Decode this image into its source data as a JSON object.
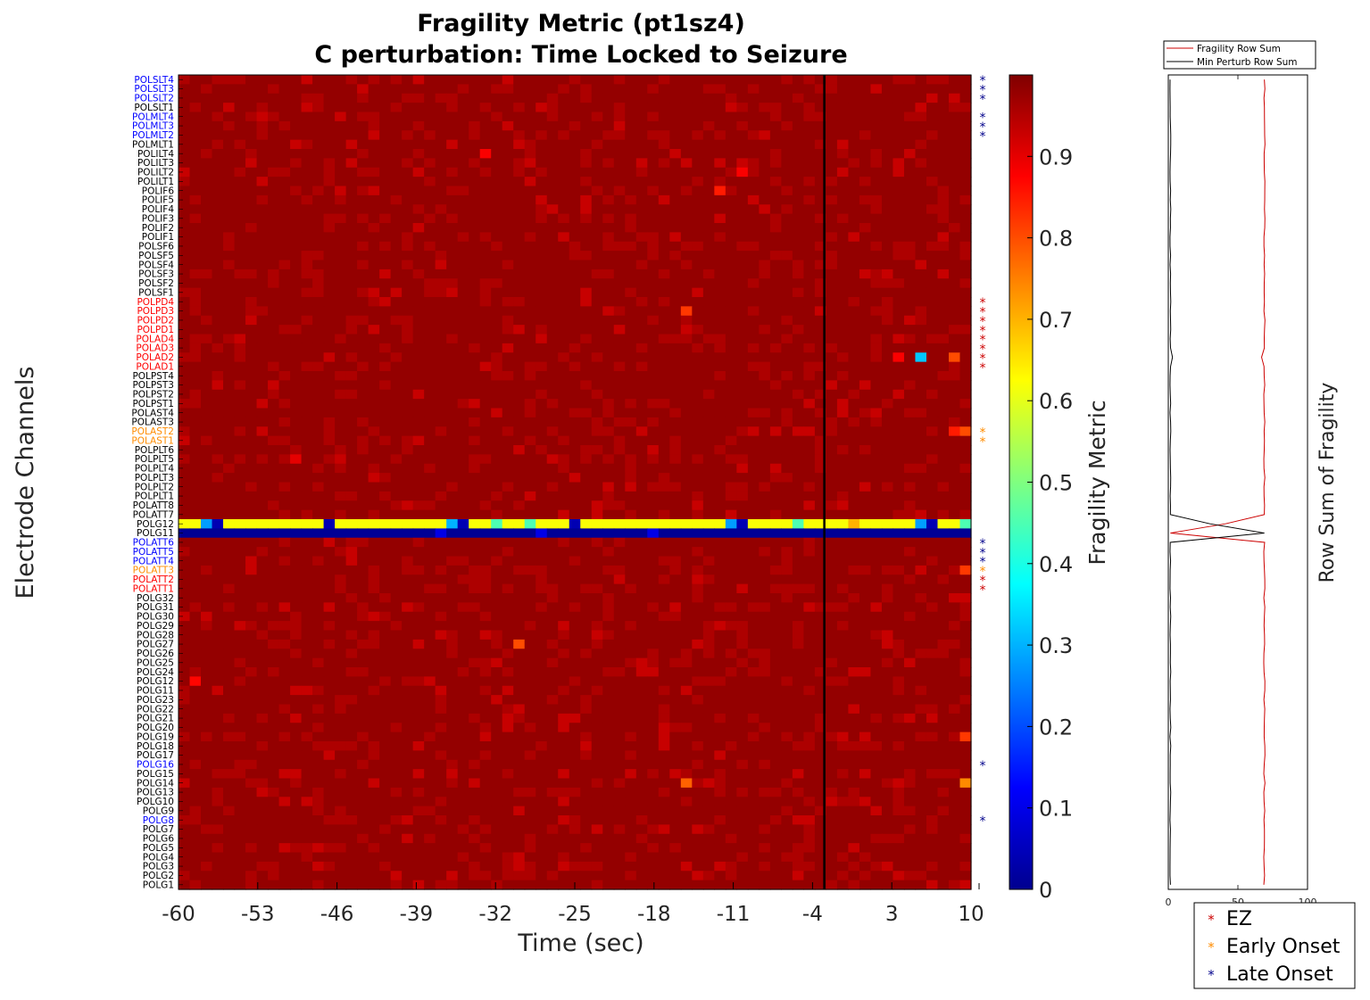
{
  "chart_data": {
    "type": "heatmap",
    "title_line1": "Fragility Metric (pt1sz4)",
    "title_line2": "C perturbation:  Time Locked to Seizure",
    "xlabel": "Time (sec)",
    "ylabel": "Electrode Channels",
    "xlim": [
      -60,
      10
    ],
    "xticks": [
      "-60",
      "-53",
      "-46",
      "-39",
      "-32",
      "-25",
      "-18",
      "-11",
      "-4",
      "3",
      "10"
    ],
    "seizure_onset_time": 0,
    "base_value": 0.98,
    "channels": [
      {
        "name": "POLSLT4",
        "group": "late"
      },
      {
        "name": "POLSLT3",
        "group": "late"
      },
      {
        "name": "POLSLT2",
        "group": "late"
      },
      {
        "name": "POLSLT1",
        "group": "none"
      },
      {
        "name": "POLMLT4",
        "group": "late"
      },
      {
        "name": "POLMLT3",
        "group": "late"
      },
      {
        "name": "POLMLT2",
        "group": "late"
      },
      {
        "name": "POLMLT1",
        "group": "none"
      },
      {
        "name": "POLILT4",
        "group": "none"
      },
      {
        "name": "POLILT3",
        "group": "none"
      },
      {
        "name": "POLILT2",
        "group": "none"
      },
      {
        "name": "POLILT1",
        "group": "none"
      },
      {
        "name": "POLIF6",
        "group": "none"
      },
      {
        "name": "POLIF5",
        "group": "none"
      },
      {
        "name": "POLIF4",
        "group": "none"
      },
      {
        "name": "POLIF3",
        "group": "none"
      },
      {
        "name": "POLIF2",
        "group": "none"
      },
      {
        "name": "POLIF1",
        "group": "none"
      },
      {
        "name": "POLSF6",
        "group": "none"
      },
      {
        "name": "POLSF5",
        "group": "none"
      },
      {
        "name": "POLSF4",
        "group": "none"
      },
      {
        "name": "POLSF3",
        "group": "none"
      },
      {
        "name": "POLSF2",
        "group": "none"
      },
      {
        "name": "POLSF1",
        "group": "none"
      },
      {
        "name": "POLPD4",
        "group": "ez"
      },
      {
        "name": "POLPD3",
        "group": "ez"
      },
      {
        "name": "POLPD2",
        "group": "ez"
      },
      {
        "name": "POLPD1",
        "group": "ez"
      },
      {
        "name": "POLAD4",
        "group": "ez"
      },
      {
        "name": "POLAD3",
        "group": "ez"
      },
      {
        "name": "POLAD2",
        "group": "ez"
      },
      {
        "name": "POLAD1",
        "group": "ez"
      },
      {
        "name": "POLPST4",
        "group": "none"
      },
      {
        "name": "POLPST3",
        "group": "none"
      },
      {
        "name": "POLPST2",
        "group": "none"
      },
      {
        "name": "POLPST1",
        "group": "none"
      },
      {
        "name": "POLAST4",
        "group": "none"
      },
      {
        "name": "POLAST3",
        "group": "none"
      },
      {
        "name": "POLAST2",
        "group": "early"
      },
      {
        "name": "POLAST1",
        "group": "early"
      },
      {
        "name": "POLPLT6",
        "group": "none"
      },
      {
        "name": "POLPLT5",
        "group": "none"
      },
      {
        "name": "POLPLT4",
        "group": "none"
      },
      {
        "name": "POLPLT3",
        "group": "none"
      },
      {
        "name": "POLPLT2",
        "group": "none"
      },
      {
        "name": "POLPLT1",
        "group": "none"
      },
      {
        "name": "POLATT8",
        "group": "none"
      },
      {
        "name": "POLATT7",
        "group": "none"
      },
      {
        "name": "POLG12",
        "group": "none"
      },
      {
        "name": "POLG11",
        "group": "none"
      },
      {
        "name": "POLATT6",
        "group": "late"
      },
      {
        "name": "POLATT5",
        "group": "late"
      },
      {
        "name": "POLATT4",
        "group": "late"
      },
      {
        "name": "POLATT3",
        "group": "early"
      },
      {
        "name": "POLATT2",
        "group": "ez"
      },
      {
        "name": "POLATT1",
        "group": "ez"
      },
      {
        "name": "POLG32",
        "group": "none"
      },
      {
        "name": "POLG31",
        "group": "none"
      },
      {
        "name": "POLG30",
        "group": "none"
      },
      {
        "name": "POLG29",
        "group": "none"
      },
      {
        "name": "POLG28",
        "group": "none"
      },
      {
        "name": "POLG27",
        "group": "none"
      },
      {
        "name": "POLG26",
        "group": "none"
      },
      {
        "name": "POLG25",
        "group": "none"
      },
      {
        "name": "POLG24",
        "group": "none"
      },
      {
        "name": "POLG12",
        "group": "none"
      },
      {
        "name": "POLG11",
        "group": "none"
      },
      {
        "name": "POLG23",
        "group": "none"
      },
      {
        "name": "POLG22",
        "group": "none"
      },
      {
        "name": "POLG21",
        "group": "none"
      },
      {
        "name": "POLG20",
        "group": "none"
      },
      {
        "name": "POLG19",
        "group": "none"
      },
      {
        "name": "POLG18",
        "group": "none"
      },
      {
        "name": "POLG17",
        "group": "none"
      },
      {
        "name": "POLG16",
        "group": "late"
      },
      {
        "name": "POLG15",
        "group": "none"
      },
      {
        "name": "POLG14",
        "group": "none"
      },
      {
        "name": "POLG13",
        "group": "none"
      },
      {
        "name": "POLG10",
        "group": "none"
      },
      {
        "name": "POLG9",
        "group": "none"
      },
      {
        "name": "POLG8",
        "group": "late"
      },
      {
        "name": "POLG7",
        "group": "none"
      },
      {
        "name": "POLG6",
        "group": "none"
      },
      {
        "name": "POLG5",
        "group": "none"
      },
      {
        "name": "POLG4",
        "group": "none"
      },
      {
        "name": "POLG3",
        "group": "none"
      },
      {
        "name": "POLG2",
        "group": "none"
      },
      {
        "name": "POLG1",
        "group": "none"
      }
    ],
    "time_bins": [
      -60,
      -59,
      -58,
      -57,
      -56,
      -55,
      -54,
      -53,
      -52,
      -51,
      -50,
      -49,
      -48,
      -47,
      -46,
      -45,
      -44,
      -43,
      -42,
      -41,
      -40,
      -39,
      -38,
      -37,
      -36,
      -35,
      -34,
      -33,
      -32,
      -31,
      -30,
      -29,
      -28,
      -27,
      -26,
      -25,
      -24,
      -23,
      -22,
      -21,
      -20,
      -19,
      -18,
      -17,
      -16,
      -15,
      -14,
      -13,
      -12,
      -11,
      -10,
      -9,
      -8,
      -7,
      -6,
      -5,
      -4,
      -3,
      -2,
      -1,
      0,
      1,
      2,
      3,
      4,
      5,
      6,
      7,
      8,
      9,
      10
    ],
    "notable_cells": [
      {
        "channel": 48,
        "pattern": [
          0.62,
          0.62,
          0.28,
          0.05,
          0.62,
          0.62,
          0.62,
          0.62,
          0.62,
          0.62,
          0.62,
          0.62,
          0.62,
          0.05,
          0.62,
          0.62,
          0.62,
          0.62,
          0.62,
          0.62,
          0.62,
          0.62,
          0.62,
          0.62,
          0.3,
          0.05,
          0.62,
          0.62,
          0.45,
          0.62,
          0.62,
          0.45,
          0.62,
          0.62,
          0.62,
          0.05,
          0.62,
          0.62,
          0.62,
          0.62,
          0.62,
          0.62,
          0.62,
          0.62,
          0.62,
          0.62,
          0.62,
          0.62,
          0.62,
          0.28,
          0.05,
          0.62,
          0.62,
          0.62,
          0.62,
          0.45,
          0.62,
          0.62,
          0.62,
          0.62,
          0.7,
          0.62,
          0.62,
          0.62,
          0.62,
          0.62,
          0.28,
          0.05,
          0.62,
          0.62,
          0.45
        ]
      },
      {
        "channel": 49,
        "pattern_value": 0.02,
        "lighter_at": [
          23,
          32,
          42
        ],
        "lighter_value": 0.1
      },
      {
        "channel": 30,
        "time_index": 66,
        "value": 0.32
      },
      {
        "channel": 30,
        "time_index": 64,
        "value": 0.88
      },
      {
        "channel": 30,
        "time_index": 69,
        "value": 0.8
      },
      {
        "channel": 38,
        "time_index": 69,
        "value": 0.85
      },
      {
        "channel": 38,
        "time_index": 70,
        "value": 0.8
      },
      {
        "channel": 65,
        "time_index": 1,
        "value": 0.87
      },
      {
        "channel": 61,
        "time_index": 30,
        "value": 0.8
      },
      {
        "channel": 25,
        "time_index": 45,
        "value": 0.82
      },
      {
        "channel": 76,
        "time_index": 45,
        "value": 0.78
      },
      {
        "channel": 76,
        "time_index": 70,
        "value": 0.74
      },
      {
        "channel": 53,
        "time_index": 70,
        "value": 0.82
      },
      {
        "channel": 71,
        "time_index": 70,
        "value": 0.82
      },
      {
        "channel": 12,
        "time_index": 48,
        "value": 0.85
      },
      {
        "channel": 8,
        "time_index": 27,
        "value": 0.88
      },
      {
        "channel": 10,
        "time_index": 50,
        "value": 0.88
      },
      {
        "channel": 41,
        "time_index": 10,
        "value": 0.9
      }
    ],
    "colorbar": {
      "label": "Fragility Metric",
      "range": [
        0,
        1
      ],
      "ticks": [
        "0",
        "0.1",
        "0.2",
        "0.3",
        "0.4",
        "0.5",
        "0.6",
        "0.7",
        "0.8",
        "0.9"
      ]
    },
    "rowsum_panel": {
      "ylabel": "Row Sum of Fragility",
      "xlim": [
        0,
        100
      ],
      "xticks": [
        "0",
        "50",
        "100"
      ],
      "series": [
        {
          "name": "Fragility Row Sum",
          "color": "#cc0000",
          "baseline": 69,
          "dips": [
            {
              "channel": 48,
              "value": 41
            },
            {
              "channel": 49,
              "value": 1.5
            },
            {
              "channel": 30,
              "value": 67
            }
          ]
        },
        {
          "name": "Min Perturb Row Sum",
          "color": "#000000",
          "baseline": 1.5,
          "bumps": [
            {
              "channel": 48,
              "value": 30
            },
            {
              "channel": 49,
              "value": 69
            },
            {
              "channel": 30,
              "value": 3
            }
          ]
        }
      ]
    },
    "legend": [
      {
        "label": "EZ",
        "color": "#cc0000"
      },
      {
        "label": "Early Onset",
        "color": "#ff8c00"
      },
      {
        "label": "Late Onset",
        "color": "#00008b"
      }
    ],
    "label_colors": {
      "ez": "#ff0000",
      "early": "#ff8c00",
      "late": "#0000ff",
      "none": "#000000"
    },
    "marker_colors": {
      "ez": "#cc0000",
      "early": "#ff8c00",
      "late": "#00008b"
    }
  }
}
